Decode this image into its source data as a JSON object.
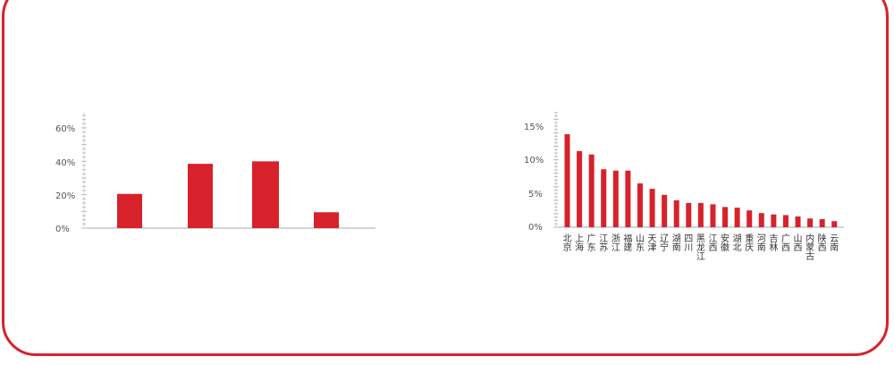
{
  "colors": {
    "bar": "#d8222b",
    "frame": "#d8222b",
    "axis": "#aaaaaa"
  },
  "chart_data": [
    {
      "type": "bar",
      "categories": [
        "",
        "",
        "",
        ""
      ],
      "values": [
        20.5,
        38.5,
        40.0,
        9.5
      ],
      "ylim": [
        0,
        68
      ],
      "yticks": [
        "0%",
        "20%",
        "40%",
        "60%"
      ],
      "title": "",
      "xlabel": "",
      "ylabel": "",
      "grid": false
    },
    {
      "type": "bar",
      "categories": [
        "北京",
        "上海",
        "广东",
        "江苏",
        "浙江",
        "福建",
        "山东",
        "天津",
        "辽宁",
        "湖南",
        "四川",
        "黑龙江",
        "江西",
        "安徽",
        "湖北",
        "重庆",
        "河南",
        "吉林",
        "广西",
        "山西",
        "内蒙古",
        "陕西",
        "云南"
      ],
      "values": [
        13.8,
        11.3,
        10.8,
        8.6,
        8.4,
        8.4,
        6.5,
        5.7,
        4.8,
        4.0,
        3.6,
        3.6,
        3.4,
        3.0,
        2.9,
        2.5,
        2.1,
        1.9,
        1.8,
        1.6,
        1.3,
        1.2,
        0.9
      ],
      "ylim": [
        0,
        17
      ],
      "yticks": [
        "0%",
        "5%",
        "10%",
        "15%"
      ],
      "title": "",
      "xlabel": "",
      "ylabel": "",
      "grid": false
    }
  ]
}
